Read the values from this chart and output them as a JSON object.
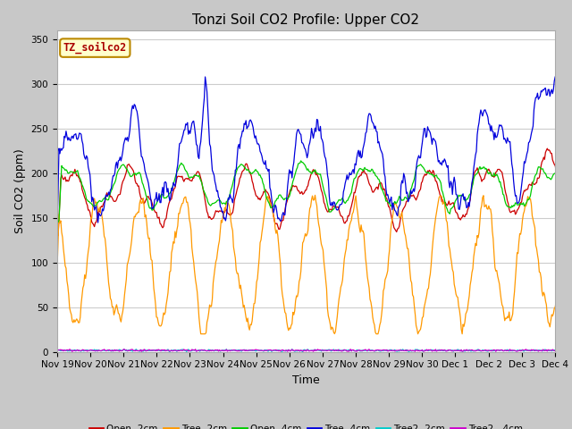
{
  "title": "Tonzi Soil CO2 Profile: Upper CO2",
  "xlabel": "Time",
  "ylabel": "Soil CO2 (ppm)",
  "ylim": [
    0,
    360
  ],
  "yticks": [
    0,
    50,
    100,
    150,
    200,
    250,
    300,
    350
  ],
  "fig_bg_color": "#c8c8c8",
  "plot_bg_color": "#ffffff",
  "legend_label": "TZ_soilco2",
  "series": [
    {
      "label": "Open -2cm",
      "color": "#cc0000"
    },
    {
      "label": "Tree -2cm",
      "color": "#ff9900"
    },
    {
      "label": "Open -4cm",
      "color": "#00cc00"
    },
    {
      "label": "Tree -4cm",
      "color": "#0000dd"
    },
    {
      "label": "Tree2 -2cm",
      "color": "#00cccc"
    },
    {
      "label": "Tree2 - 4cm",
      "color": "#cc00cc"
    }
  ],
  "title_fontsize": 11,
  "tick_fontsize": 7.5,
  "label_fontsize": 9
}
